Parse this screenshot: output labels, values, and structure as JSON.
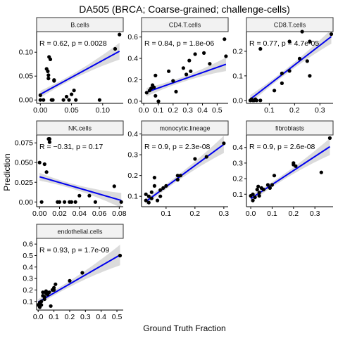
{
  "title": "DA505 (BRCA; Coarse-grained; challenge-cells)",
  "xlabel": "Ground Truth Fraction",
  "ylabel": "Prediction",
  "colors": {
    "point": "#000000",
    "fit_line": "#0000ee",
    "ci_band": "#cccccc",
    "strip_bg": "#f2f2f2",
    "strip_border": "#333333"
  },
  "chart_data": [
    {
      "type": "scatter",
      "panel": "B.cells",
      "annotation": "R = 0.62, p = 0.0028",
      "xlim": [
        -0.006,
        0.133
      ],
      "ylim": [
        -0.007,
        0.143
      ],
      "xticks": [
        0.0,
        0.05,
        0.1
      ],
      "xticklabels": [
        "0.00",
        "0.05",
        "0.10"
      ],
      "yticks": [
        0.0,
        0.05,
        0.1
      ],
      "yticklabels": [
        "0.00",
        "0.05",
        "0.10"
      ],
      "fit": [
        [
          0.0,
          0.012
        ],
        [
          0.127,
          0.102
        ]
      ],
      "points": [
        [
          0.0,
          0.01
        ],
        [
          0.0,
          0.0
        ],
        [
          0.005,
          0.0
        ],
        [
          0.01,
          0.065
        ],
        [
          0.012,
          0.06
        ],
        [
          0.013,
          0.052
        ],
        [
          0.013,
          0.045
        ],
        [
          0.014,
          0.09
        ],
        [
          0.016,
          0.085
        ],
        [
          0.018,
          0.0
        ],
        [
          0.02,
          0.0
        ],
        [
          0.022,
          0.04
        ],
        [
          0.022,
          0.042
        ],
        [
          0.037,
          0.0
        ],
        [
          0.042,
          0.007
        ],
        [
          0.046,
          0.0
        ],
        [
          0.05,
          0.012
        ],
        [
          0.054,
          0.02
        ],
        [
          0.057,
          0.0
        ],
        [
          0.095,
          0.0
        ],
        [
          0.12,
          0.107
        ],
        [
          0.127,
          0.137
        ]
      ]
    },
    {
      "type": "scatter",
      "panel": "CD4.T.cells",
      "annotation": "R = 0.84, p = 1.8e-06",
      "xlim": [
        -0.015,
        0.575
      ],
      "ylim": [
        -0.02,
        0.65
      ],
      "xticks": [
        0.0,
        0.1,
        0.2,
        0.3,
        0.4,
        0.5
      ],
      "xticklabels": [
        "0.0",
        "0.1",
        "0.2",
        "0.3",
        "0.4",
        "0.5"
      ],
      "yticks": [
        0.0,
        0.2,
        0.4,
        0.6
      ],
      "yticklabels": [
        "0.0",
        "0.2",
        "0.4",
        "0.6"
      ],
      "fit": [
        [
          0.02,
          0.085
        ],
        [
          0.56,
          0.345
        ]
      ],
      "points": [
        [
          0.02,
          0.08
        ],
        [
          0.04,
          0.1
        ],
        [
          0.05,
          0.12
        ],
        [
          0.06,
          0.15
        ],
        [
          0.07,
          0.13
        ],
        [
          0.08,
          0.05
        ],
        [
          0.08,
          0.24
        ],
        [
          0.1,
          0.0
        ],
        [
          0.17,
          0.28
        ],
        [
          0.2,
          0.19
        ],
        [
          0.22,
          0.09
        ],
        [
          0.27,
          0.31
        ],
        [
          0.29,
          0.25
        ],
        [
          0.31,
          0.38
        ],
        [
          0.32,
          0.28
        ],
        [
          0.35,
          0.44
        ],
        [
          0.41,
          0.45
        ],
        [
          0.45,
          0.35
        ],
        [
          0.55,
          0.58
        ],
        [
          0.56,
          0.42
        ]
      ]
    },
    {
      "type": "scatter",
      "panel": "CD8.T.cells",
      "annotation": "R = 0.77, p = 4.7e-05",
      "xlim": [
        0.01,
        0.352
      ],
      "ylim": [
        -0.012,
        0.28
      ],
      "xticks": [
        0.1,
        0.2,
        0.3
      ],
      "xticklabels": [
        "0.1",
        "0.2",
        "0.3"
      ],
      "yticks": [
        0.0,
        0.1,
        0.2
      ],
      "yticklabels": [
        "0.0",
        "0.1",
        "0.2"
      ],
      "fit": [
        [
          0.025,
          0.005
        ],
        [
          0.345,
          0.26
        ]
      ],
      "points": [
        [
          0.025,
          0.0
        ],
        [
          0.03,
          0.005
        ],
        [
          0.035,
          0.0
        ],
        [
          0.04,
          0.0
        ],
        [
          0.045,
          0.005
        ],
        [
          0.05,
          0.0
        ],
        [
          0.065,
          0.0
        ],
        [
          0.065,
          0.21
        ],
        [
          0.12,
          0.04
        ],
        [
          0.15,
          0.07
        ],
        [
          0.15,
          0.11
        ],
        [
          0.18,
          0.12
        ],
        [
          0.18,
          0.24
        ],
        [
          0.22,
          0.17
        ],
        [
          0.23,
          0.28
        ],
        [
          0.25,
          0.16
        ],
        [
          0.26,
          0.24
        ],
        [
          0.26,
          0.1
        ],
        [
          0.345,
          0.27
        ]
      ]
    },
    {
      "type": "scatter",
      "panel": "NK.cells",
      "annotation": "R = −0.31, p = 0.17",
      "xlim": [
        -0.003,
        0.084
      ],
      "ylim": [
        -0.006,
        0.085
      ],
      "xticks": [
        0.0,
        0.02,
        0.04,
        0.06,
        0.08
      ],
      "xticklabels": [
        "0.00",
        "0.02",
        "0.04",
        "0.06",
        "0.08"
      ],
      "yticks": [
        0.0,
        0.025,
        0.05,
        0.075
      ],
      "yticklabels": [
        "0.00",
        "0.025",
        "0.050",
        "0.075"
      ],
      "fit": [
        [
          0.0,
          0.032
        ],
        [
          0.082,
          0.002
        ]
      ],
      "points": [
        [
          0.0,
          0.05
        ],
        [
          0.002,
          0.0
        ],
        [
          0.005,
          0.048
        ],
        [
          0.007,
          0.038
        ],
        [
          0.009,
          0.08
        ],
        [
          0.01,
          0.08
        ],
        [
          0.01,
          0.076
        ],
        [
          0.018,
          0.0
        ],
        [
          0.02,
          0.0
        ],
        [
          0.025,
          0.0
        ],
        [
          0.03,
          0.0
        ],
        [
          0.032,
          0.0
        ],
        [
          0.036,
          0.0
        ],
        [
          0.04,
          0.008
        ],
        [
          0.05,
          0.008
        ],
        [
          0.056,
          0.0
        ],
        [
          0.075,
          0.02
        ],
        [
          0.082,
          0.0
        ]
      ]
    },
    {
      "type": "scatter",
      "panel": "monocytic.lineage",
      "annotation": "R = 0.9, p = 2.3e-08",
      "xlim": [
        0.015,
        0.315
      ],
      "ylim": [
        0.05,
        0.395
      ],
      "xticks": [
        0.1,
        0.2,
        0.3
      ],
      "xticklabels": [
        "0.1",
        "0.2",
        "0.3"
      ],
      "yticks": [
        0.1,
        0.2,
        0.3,
        0.4
      ],
      "yticklabels": [
        "0.1",
        "0.2",
        "0.3",
        "0.4"
      ],
      "fit": [
        [
          0.03,
          0.075
        ],
        [
          0.3,
          0.35
        ]
      ],
      "points": [
        [
          0.03,
          0.08
        ],
        [
          0.03,
          0.11
        ],
        [
          0.04,
          0.1
        ],
        [
          0.04,
          0.07
        ],
        [
          0.05,
          0.09
        ],
        [
          0.05,
          0.12
        ],
        [
          0.06,
          0.15
        ],
        [
          0.06,
          0.19
        ],
        [
          0.07,
          0.08
        ],
        [
          0.08,
          0.1
        ],
        [
          0.08,
          0.13
        ],
        [
          0.09,
          0.14
        ],
        [
          0.1,
          0.15
        ],
        [
          0.14,
          0.18
        ],
        [
          0.14,
          0.2
        ],
        [
          0.15,
          0.2
        ],
        [
          0.2,
          0.28
        ],
        [
          0.24,
          0.29
        ],
        [
          0.3,
          0.355
        ]
      ]
    },
    {
      "type": "scatter",
      "panel": "fibroblasts",
      "annotation": "R = 0.9, p = 2.6e-08",
      "xlim": [
        -0.02,
        0.385
      ],
      "ylim": [
        0.02,
        0.48
      ],
      "xticks": [
        0.0,
        0.1,
        0.2,
        0.3
      ],
      "xticklabels": [
        "0.0",
        "0.1",
        "0.2",
        "0.3"
      ],
      "yticks": [
        0.1,
        0.2,
        0.3,
        0.4
      ],
      "yticklabels": [
        "0.1",
        "0.2",
        "0.3",
        "0.4"
      ],
      "fit": [
        [
          0.0,
          0.072
        ],
        [
          0.37,
          0.405
        ]
      ],
      "points": [
        [
          0.0,
          0.09
        ],
        [
          0.01,
          0.06
        ],
        [
          0.01,
          0.1
        ],
        [
          0.02,
          0.08
        ],
        [
          0.03,
          0.13
        ],
        [
          0.035,
          0.15
        ],
        [
          0.04,
          0.09
        ],
        [
          0.04,
          0.11
        ],
        [
          0.05,
          0.14
        ],
        [
          0.06,
          0.13
        ],
        [
          0.08,
          0.16
        ],
        [
          0.09,
          0.14
        ],
        [
          0.1,
          0.16
        ],
        [
          0.11,
          0.22
        ],
        [
          0.2,
          0.29
        ],
        [
          0.2,
          0.3
        ],
        [
          0.21,
          0.28
        ],
        [
          0.33,
          0.24
        ],
        [
          0.37,
          0.46
        ]
      ]
    },
    {
      "type": "scatter",
      "panel": "endothelial.cells",
      "annotation": "R = 0.93, p = 1.7e-09",
      "xlim": [
        -0.01,
        0.54
      ],
      "ylim": [
        0.025,
        0.65
      ],
      "xticks": [
        0.0,
        0.1,
        0.2,
        0.3,
        0.4,
        0.5
      ],
      "xticklabels": [
        "0.0",
        "0.1",
        "0.2",
        "0.3",
        "0.4",
        "0.5"
      ],
      "yticks": [
        0.1,
        0.2,
        0.3,
        0.4,
        0.5,
        0.6
      ],
      "yticklabels": [
        "0.1",
        "0.2",
        "0.3",
        "0.4",
        "0.5",
        "0.6"
      ],
      "fit": [
        [
          0.0,
          0.095
        ],
        [
          0.52,
          0.505
        ]
      ],
      "points": [
        [
          0.0,
          0.07
        ],
        [
          0.01,
          0.05
        ],
        [
          0.01,
          0.09
        ],
        [
          0.02,
          0.07
        ],
        [
          0.02,
          0.1
        ],
        [
          0.03,
          0.15
        ],
        [
          0.03,
          0.18
        ],
        [
          0.04,
          0.12
        ],
        [
          0.04,
          0.14
        ],
        [
          0.05,
          0.17
        ],
        [
          0.05,
          0.19
        ],
        [
          0.06,
          0.16
        ],
        [
          0.07,
          0.18
        ],
        [
          0.08,
          0.06
        ],
        [
          0.09,
          0.2
        ],
        [
          0.1,
          0.2
        ],
        [
          0.1,
          0.22
        ],
        [
          0.11,
          0.25
        ],
        [
          0.2,
          0.28
        ],
        [
          0.28,
          0.35
        ],
        [
          0.52,
          0.5
        ]
      ]
    }
  ]
}
